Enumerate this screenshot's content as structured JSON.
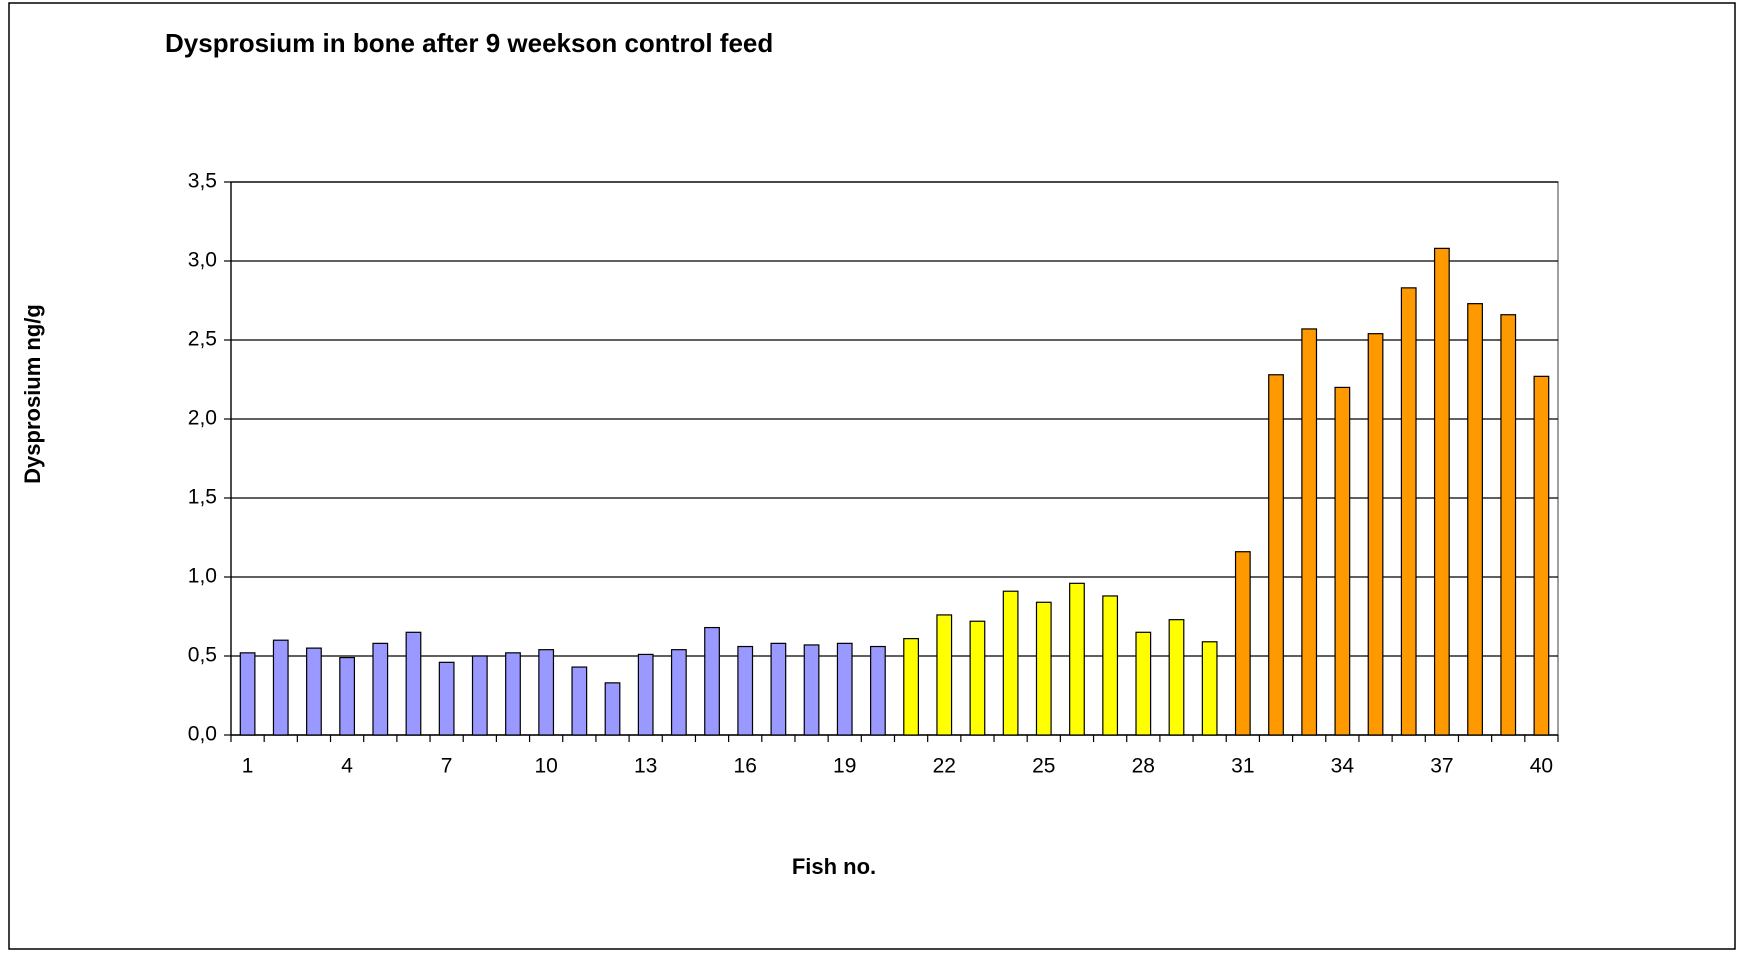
{
  "chart_data": {
    "type": "bar",
    "title": "Dysprosium in  bone after 9 weekson control feed",
    "y_label": "Dysprosium ng/g",
    "x_label": "Fish no.",
    "categories": [
      "1",
      null,
      null,
      "4",
      null,
      null,
      "7",
      null,
      null,
      "10",
      null,
      null,
      "13",
      null,
      null,
      "16",
      null,
      null,
      "19",
      null,
      null,
      "22",
      null,
      null,
      "25",
      null,
      null,
      "28",
      null,
      null,
      "31",
      null,
      null,
      "34",
      null,
      null,
      "37",
      null,
      null,
      "40"
    ],
    "values": [
      0.52,
      0.6,
      0.55,
      0.49,
      0.58,
      0.65,
      0.46,
      0.5,
      0.52,
      0.54,
      0.43,
      0.33,
      0.51,
      0.54,
      0.68,
      0.56,
      0.58,
      0.57,
      0.58,
      0.56,
      0.61,
      0.76,
      0.72,
      0.91,
      0.84,
      0.96,
      0.88,
      0.65,
      0.73,
      0.59,
      1.16,
      2.28,
      2.57,
      2.2,
      2.54,
      2.83,
      3.08,
      2.73,
      2.66,
      2.27
    ],
    "colors": [
      "#9999ff",
      "#9999ff",
      "#9999ff",
      "#9999ff",
      "#9999ff",
      "#9999ff",
      "#9999ff",
      "#9999ff",
      "#9999ff",
      "#9999ff",
      "#9999ff",
      "#9999ff",
      "#9999ff",
      "#9999ff",
      "#9999ff",
      "#9999ff",
      "#9999ff",
      "#9999ff",
      "#9999ff",
      "#9999ff",
      "#ffff00",
      "#ffff00",
      "#ffff00",
      "#ffff00",
      "#ffff00",
      "#ffff00",
      "#ffff00",
      "#ffff00",
      "#ffff00",
      "#ffff00",
      "#ff9900",
      "#ff9900",
      "#ff9900",
      "#ff9900",
      "#ff9900",
      "#ff9900",
      "#ff9900",
      "#ff9900",
      "#ff9900",
      "#ff9900"
    ],
    "ylim": [
      0,
      3.5
    ],
    "yticks": [
      {
        "value": 0,
        "label": "0,0"
      },
      {
        "value": 0.5,
        "label": "0,5"
      },
      {
        "value": 1,
        "label": "1,0"
      },
      {
        "value": 1.5,
        "label": "1,5"
      },
      {
        "value": 2,
        "label": "2,0"
      },
      {
        "value": 2.5,
        "label": "2,5"
      },
      {
        "value": 3,
        "label": "3,0"
      },
      {
        "value": 3.5,
        "label": "3,5"
      }
    ],
    "grid": true
  }
}
